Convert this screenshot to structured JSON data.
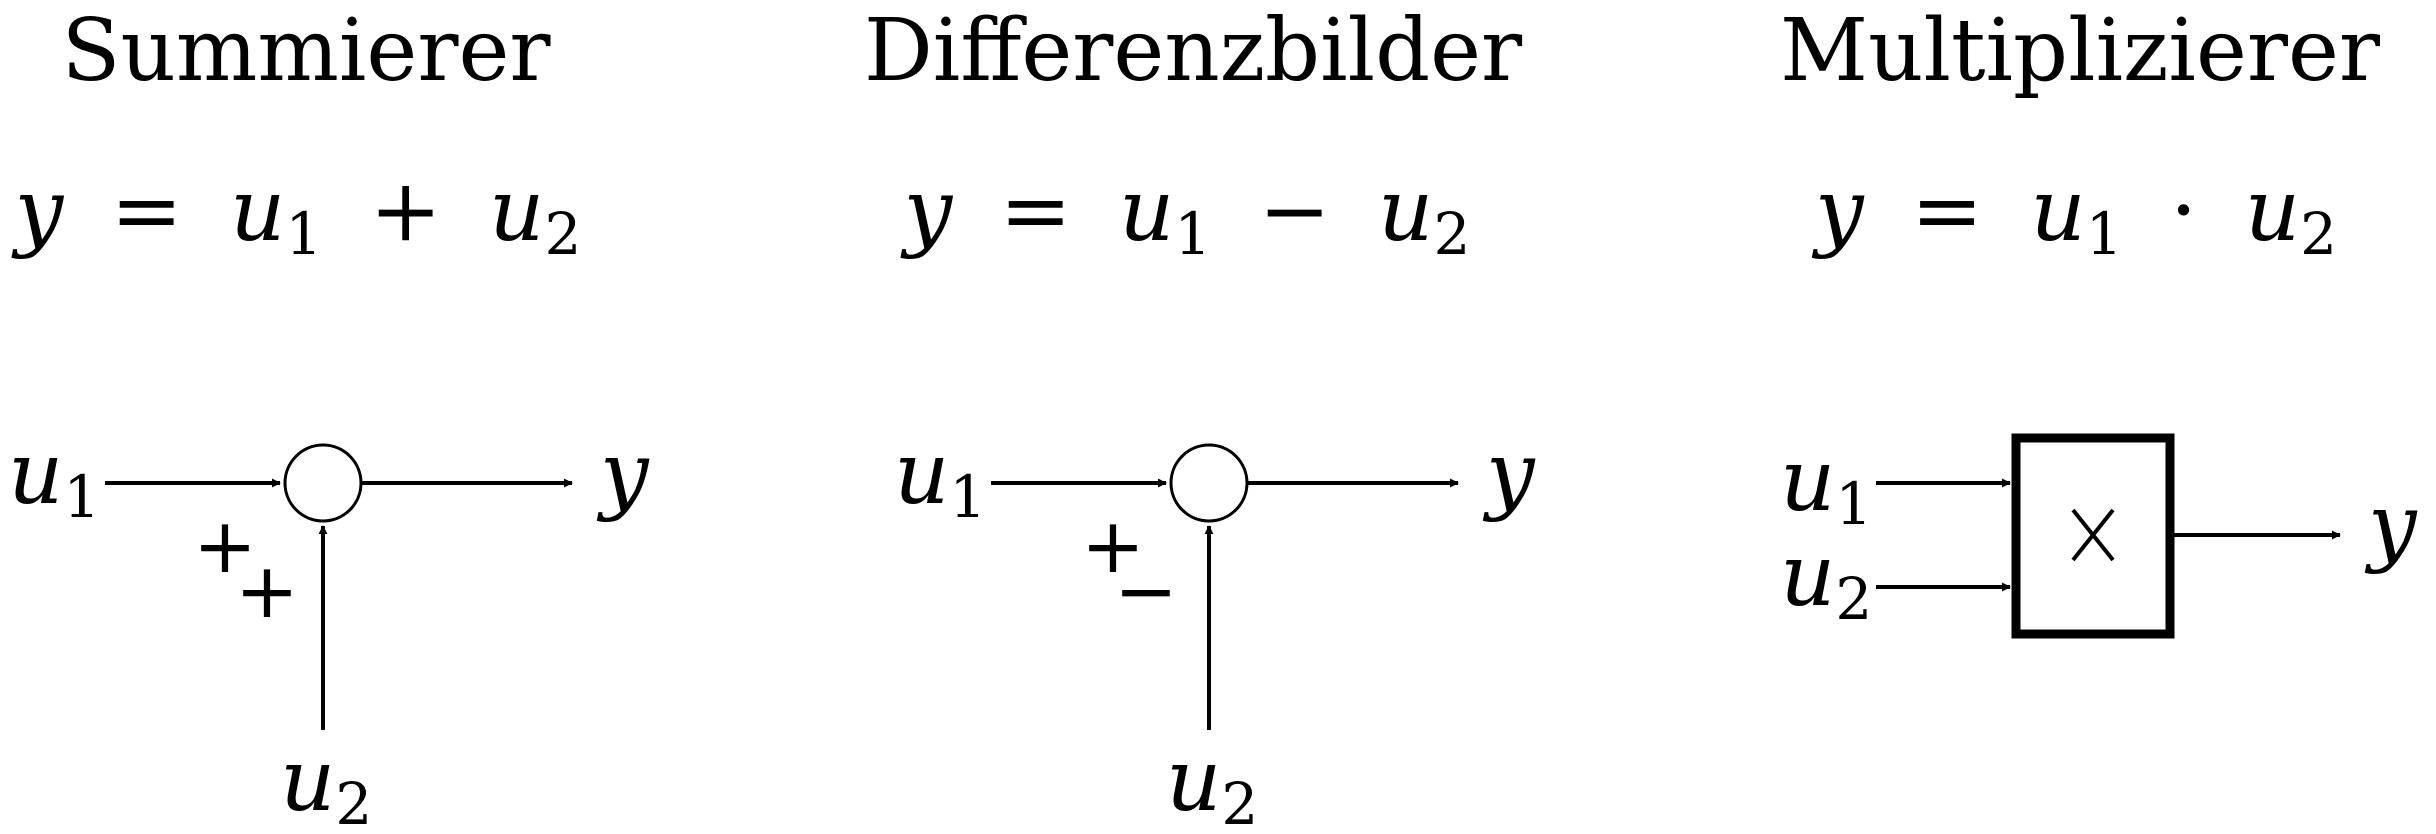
{
  "panels": [
    {
      "title": "Summierer",
      "equation": {
        "lhs": "y",
        "eq": "=",
        "a": "u",
        "a_sub": "1",
        "op": "+",
        "b": "u",
        "b_sub": "2"
      },
      "inputs": {
        "u1": "u",
        "u1_sub": "1",
        "u2": "u",
        "u2_sub": "2"
      },
      "output": "y",
      "signs": [
        "+",
        "+"
      ]
    },
    {
      "title": "Differenzbilder",
      "equation": {
        "lhs": "y",
        "eq": "=",
        "a": "u",
        "a_sub": "1",
        "op": "−",
        "b": "u",
        "b_sub": "2"
      },
      "inputs": {
        "u1": "u",
        "u1_sub": "1",
        "u2": "u",
        "u2_sub": "2"
      },
      "output": "y",
      "signs": [
        "+",
        "−"
      ]
    },
    {
      "title": "Multiplizierer",
      "equation": {
        "lhs": "y",
        "eq": "=",
        "a": "u",
        "a_sub": "1",
        "op": "·",
        "b": "u",
        "b_sub": "2"
      },
      "inputs": {
        "u1": "u",
        "u1_sub": "1",
        "u2": "u",
        "u2_sub": "2"
      },
      "output": "y",
      "block_symbol": "multiply-symbol"
    }
  ]
}
